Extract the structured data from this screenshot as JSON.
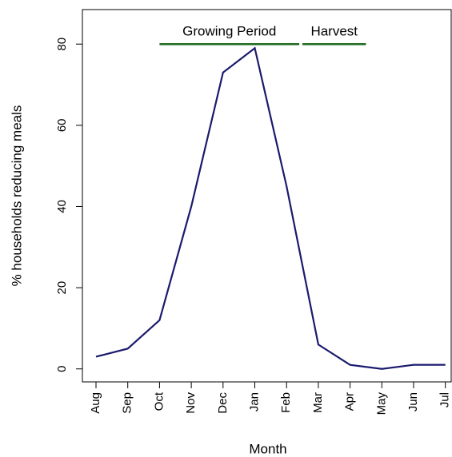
{
  "chart_data": {
    "type": "line",
    "x_label": "Month",
    "y_label": "% households reducing meals",
    "categories": [
      "Aug",
      "Sep",
      "Oct",
      "Nov",
      "Dec",
      "Jan",
      "Feb",
      "Mar",
      "Apr",
      "May",
      "Jun",
      "Jul"
    ],
    "series": [
      {
        "color": "#1a1a6e",
        "values": [
          3,
          5,
          12,
          40,
          73,
          79,
          45,
          6,
          1,
          0,
          1,
          1
        ]
      }
    ],
    "ylim": [
      -3.2,
      88.5
    ],
    "yticks": [
      0,
      20,
      40,
      60,
      80
    ],
    "annotations": [
      {
        "text": "Growing Period",
        "x": [
          2,
          6.4
        ],
        "y": 80,
        "color": "#1e6b1e"
      },
      {
        "text": "Harvest",
        "x": [
          6.5,
          8.5
        ],
        "y": 80,
        "color": "#1e6b1e"
      }
    ]
  }
}
